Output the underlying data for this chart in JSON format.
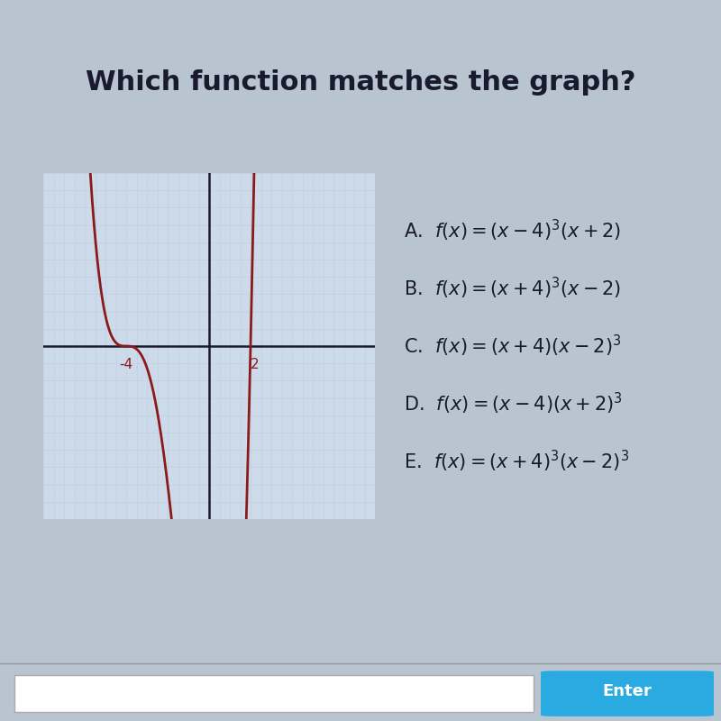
{
  "title": "Which function matches the graph?",
  "title_fontsize": 22,
  "title_fontweight": "bold",
  "title_color": "#1a1a2e",
  "curve_color": "#8B1A1A",
  "curve_linewidth": 2.0,
  "xlim": [
    -8,
    8
  ],
  "ylim": [
    -5,
    5
  ],
  "x_ticks_labeled": [
    -4,
    2
  ],
  "grid_color": "#b8cfe0",
  "grid_linewidth": 0.4,
  "graph_bg": "#cddaea",
  "content_bg": "#d0d8e4",
  "top_black_bg": "#111111",
  "outer_bg": "#b8c4d0",
  "choices": [
    [
      "A.",
      "f(x) = (x − 4)",
      "3",
      "(x + 2)"
    ],
    [
      "B.",
      "f(x) = (x + 4)",
      "3",
      "(x − 2)"
    ],
    [
      "C.",
      "f(x) = (x + 4)(x − 2)",
      "3",
      ""
    ],
    [
      "D.",
      "f(x) = (x − 4)(x + 2)",
      "3",
      ""
    ],
    [
      "E.",
      "f(x) = (x + 4)",
      "3",
      "(x − 2)",
      "3",
      ""
    ]
  ],
  "choices_fontsize": 15,
  "choices_color": "#1a1a2e",
  "enter_button_color": "#29abe2",
  "enter_button_text": "Enter",
  "enter_text_color": "#ffffff",
  "scale_factor": 8.0
}
